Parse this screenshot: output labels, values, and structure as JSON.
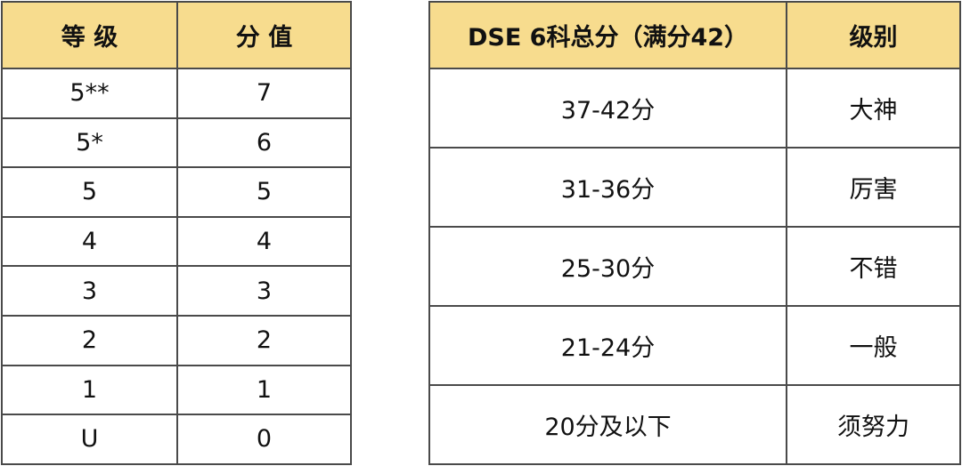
{
  "grade_table": {
    "headers": [
      "等 级",
      "分 值"
    ],
    "rows": [
      [
        "5**",
        "7"
      ],
      [
        "5*",
        "6"
      ],
      [
        "5",
        "5"
      ],
      [
        "4",
        "4"
      ],
      [
        "3",
        "3"
      ],
      [
        "2",
        "2"
      ],
      [
        "1",
        "1"
      ],
      [
        "U",
        "0"
      ]
    ]
  },
  "level_table": {
    "headers": [
      "DSE 6科总分（满分42）",
      "级别"
    ],
    "rows": [
      [
        "37-42分",
        "大神"
      ],
      [
        "31-36分",
        "厉害"
      ],
      [
        "25-30分",
        "不错"
      ],
      [
        "21-24分",
        "一般"
      ],
      [
        "20分及以下",
        "须努力"
      ]
    ]
  },
  "colors": {
    "header_bg": "#f7dc8e",
    "border": "#4a4a4a"
  }
}
